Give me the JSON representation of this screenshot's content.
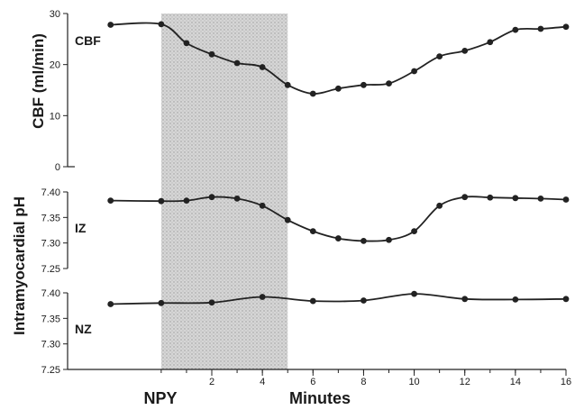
{
  "chart_data": [
    {
      "type": "line",
      "panel": "CBF",
      "panel_label": "CBF",
      "ylabel": "CBF (ml/min)",
      "ylim": [
        0,
        30
      ],
      "yticks": [
        "0",
        "10",
        "20",
        "30"
      ],
      "ytick_values": [
        0,
        10,
        20,
        30
      ],
      "x": [
        -2,
        0,
        1,
        2,
        3,
        4,
        5,
        6,
        7,
        8,
        9,
        10,
        11,
        12,
        13,
        14,
        15,
        16
      ],
      "values": [
        27.8,
        27.9,
        24.2,
        22.0,
        20.3,
        19.5,
        16.0,
        14.3,
        15.3,
        16.0,
        16.3,
        18.7,
        21.6,
        22.7,
        24.4,
        26.8,
        27.0,
        27.4
      ]
    },
    {
      "type": "line",
      "panel": "IZ",
      "panel_label": "IZ",
      "ylabel": "Intramyocardial pH",
      "ylim": [
        7.25,
        7.4
      ],
      "yticks": [
        "7.25",
        "7.30",
        "7.35",
        "7.40"
      ],
      "ytick_values": [
        7.25,
        7.3,
        7.35,
        7.4
      ],
      "x": [
        -2,
        0,
        1,
        2,
        3,
        4,
        5,
        6,
        7,
        8,
        9,
        10,
        11,
        12,
        13,
        14,
        15,
        16
      ],
      "values": [
        7.383,
        7.382,
        7.383,
        7.39,
        7.387,
        7.373,
        7.345,
        7.323,
        7.309,
        7.304,
        7.306,
        7.323,
        7.373,
        7.39,
        7.389,
        7.388,
        7.387,
        7.385
      ]
    },
    {
      "type": "line",
      "panel": "NZ",
      "panel_label": "NZ",
      "ylim": [
        7.25,
        7.4
      ],
      "yticks": [
        "7.25",
        "7.30",
        "7.35",
        "7.40"
      ],
      "ytick_values": [
        7.25,
        7.3,
        7.35,
        7.4
      ],
      "x": [
        -2,
        0,
        2,
        4,
        6,
        8,
        10,
        12,
        14,
        16
      ],
      "values": [
        7.378,
        7.38,
        7.381,
        7.392,
        7.384,
        7.385,
        7.398,
        7.388,
        7.387,
        7.388
      ]
    }
  ],
  "x_axis": {
    "ticks": [
      "2",
      "4",
      "6",
      "8",
      "10",
      "12",
      "14",
      "16"
    ],
    "tick_values": [
      2,
      4,
      6,
      8,
      10,
      12,
      14,
      16
    ],
    "label": "Minutes",
    "xlim": [
      -3.7,
      16
    ],
    "infusion_label": "NPY",
    "infusion_range": [
      0,
      5
    ]
  }
}
